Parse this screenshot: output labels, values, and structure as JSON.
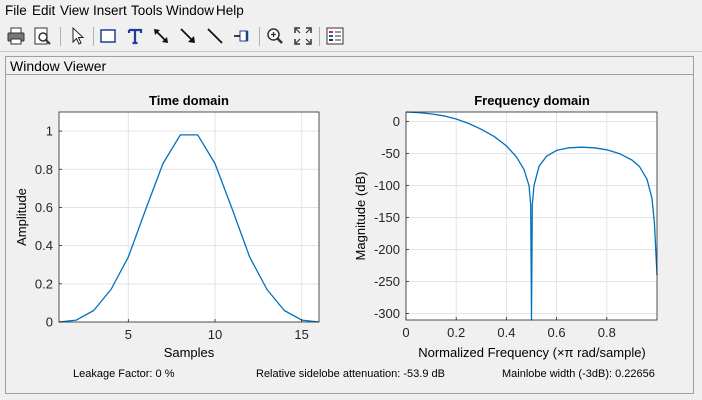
{
  "menu": [
    "File",
    "Edit",
    "View",
    "Insert",
    "Tools",
    "Window",
    "Help"
  ],
  "toolbar": {
    "buttons": [
      "print-icon",
      "print-preview-icon",
      "pointer-icon",
      "insert-rectangle-icon",
      "insert-text-icon",
      "double-arrow-icon",
      "arrow-icon",
      "line-icon",
      "pin-icon",
      "zoom-in-icon",
      "fit-to-view-icon",
      "legend-icon"
    ]
  },
  "panel": {
    "title": "Window Viewer"
  },
  "stats": {
    "leakage": "Leakage Factor: 0 %",
    "sidelobe": "Relative sidelobe attenuation: -53.9 dB",
    "mainlobe": "Mainlobe width (-3dB): 0.22656"
  },
  "colors": {
    "line": "#0072bd",
    "grid": "#e3e3e3",
    "axis": "#262626"
  },
  "chart_data": [
    {
      "type": "line",
      "title": "Time domain",
      "xlabel": "Samples",
      "ylabel": "Amplitude",
      "xlim": [
        1,
        16
      ],
      "ylim": [
        0,
        1.1
      ],
      "xticks": [
        5,
        10,
        15
      ],
      "yticks": [
        0,
        0.2,
        0.4,
        0.6,
        0.8,
        1
      ],
      "ytick_labels": [
        "0",
        "0.2",
        "0.4",
        "0.6",
        "0.8",
        "1"
      ],
      "grid": true,
      "x": [
        1,
        2,
        3,
        4,
        5,
        6,
        7,
        8,
        9,
        10,
        11,
        12,
        13,
        14,
        15,
        16
      ],
      "y": [
        0.0,
        0.01,
        0.06,
        0.17,
        0.34,
        0.59,
        0.83,
        0.98,
        0.98,
        0.83,
        0.59,
        0.34,
        0.17,
        0.06,
        0.01,
        0.0
      ]
    },
    {
      "type": "line",
      "title": "Frequency domain",
      "xlabel": "Normalized Frequency  (×π rad/sample)",
      "ylabel": "Magnitude (dB)",
      "xlim": [
        0,
        1
      ],
      "ylim": [
        -310,
        15
      ],
      "xticks": [
        0,
        0.2,
        0.4,
        0.6,
        0.8
      ],
      "xtick_labels": [
        "0",
        "0.2",
        "0.4",
        "0.6",
        "0.8"
      ],
      "yticks": [
        0,
        -50,
        -100,
        -150,
        -200,
        -250,
        -300
      ],
      "ytick_labels": [
        "0",
        "-50",
        "-100",
        "-150",
        "-200",
        "-250",
        "-300"
      ],
      "grid": true,
      "x": [
        0,
        0.05,
        0.1,
        0.15,
        0.2,
        0.25,
        0.3,
        0.35,
        0.4,
        0.44,
        0.47,
        0.49,
        0.497,
        0.5,
        0.503,
        0.51,
        0.53,
        0.56,
        0.6,
        0.65,
        0.7,
        0.75,
        0.8,
        0.85,
        0.9,
        0.93,
        0.96,
        0.98,
        0.99,
        1.0
      ],
      "y": [
        15,
        14,
        12,
        9,
        4,
        -3,
        -12,
        -23,
        -38,
        -55,
        -75,
        -100,
        -130,
        -310,
        -130,
        -100,
        -70,
        -54,
        -45,
        -41,
        -40,
        -41,
        -44,
        -50,
        -60,
        -70,
        -90,
        -120,
        -160,
        -240
      ]
    }
  ]
}
